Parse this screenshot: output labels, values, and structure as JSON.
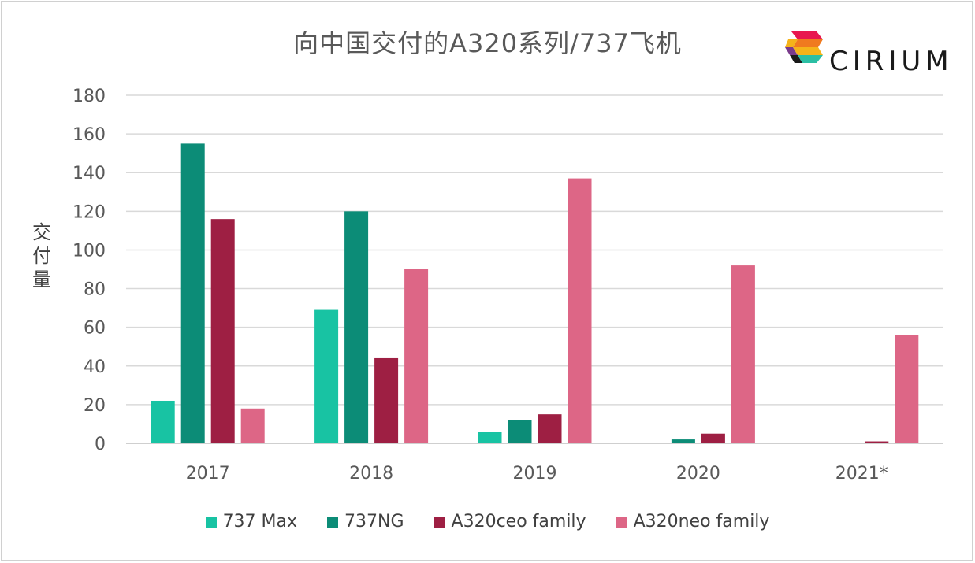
{
  "chart_data": {
    "type": "bar",
    "title": "向中国交付的A320系列/737飞机",
    "ylabel": "交付量",
    "xlabel": "",
    "ylim": [
      0,
      180
    ],
    "yticks": [
      0,
      20,
      40,
      60,
      80,
      100,
      120,
      140,
      160,
      180
    ],
    "categories": [
      "2017",
      "2018",
      "2019",
      "2020",
      "2021*"
    ],
    "series": [
      {
        "name": "737 Max",
        "color": "#18c3a3",
        "values": [
          22,
          69,
          6,
          0,
          0
        ]
      },
      {
        "name": "737NG",
        "color": "#0c8c77",
        "values": [
          155,
          120,
          12,
          2,
          0
        ]
      },
      {
        "name": "A320ceo family",
        "color": "#9e1f43",
        "values": [
          116,
          44,
          15,
          5,
          1
        ]
      },
      {
        "name": "A320neo family",
        "color": "#dd6686",
        "values": [
          18,
          90,
          137,
          92,
          56
        ]
      }
    ],
    "grid": true,
    "legend_position": "bottom"
  },
  "logo": {
    "text": "CIRIUM"
  }
}
